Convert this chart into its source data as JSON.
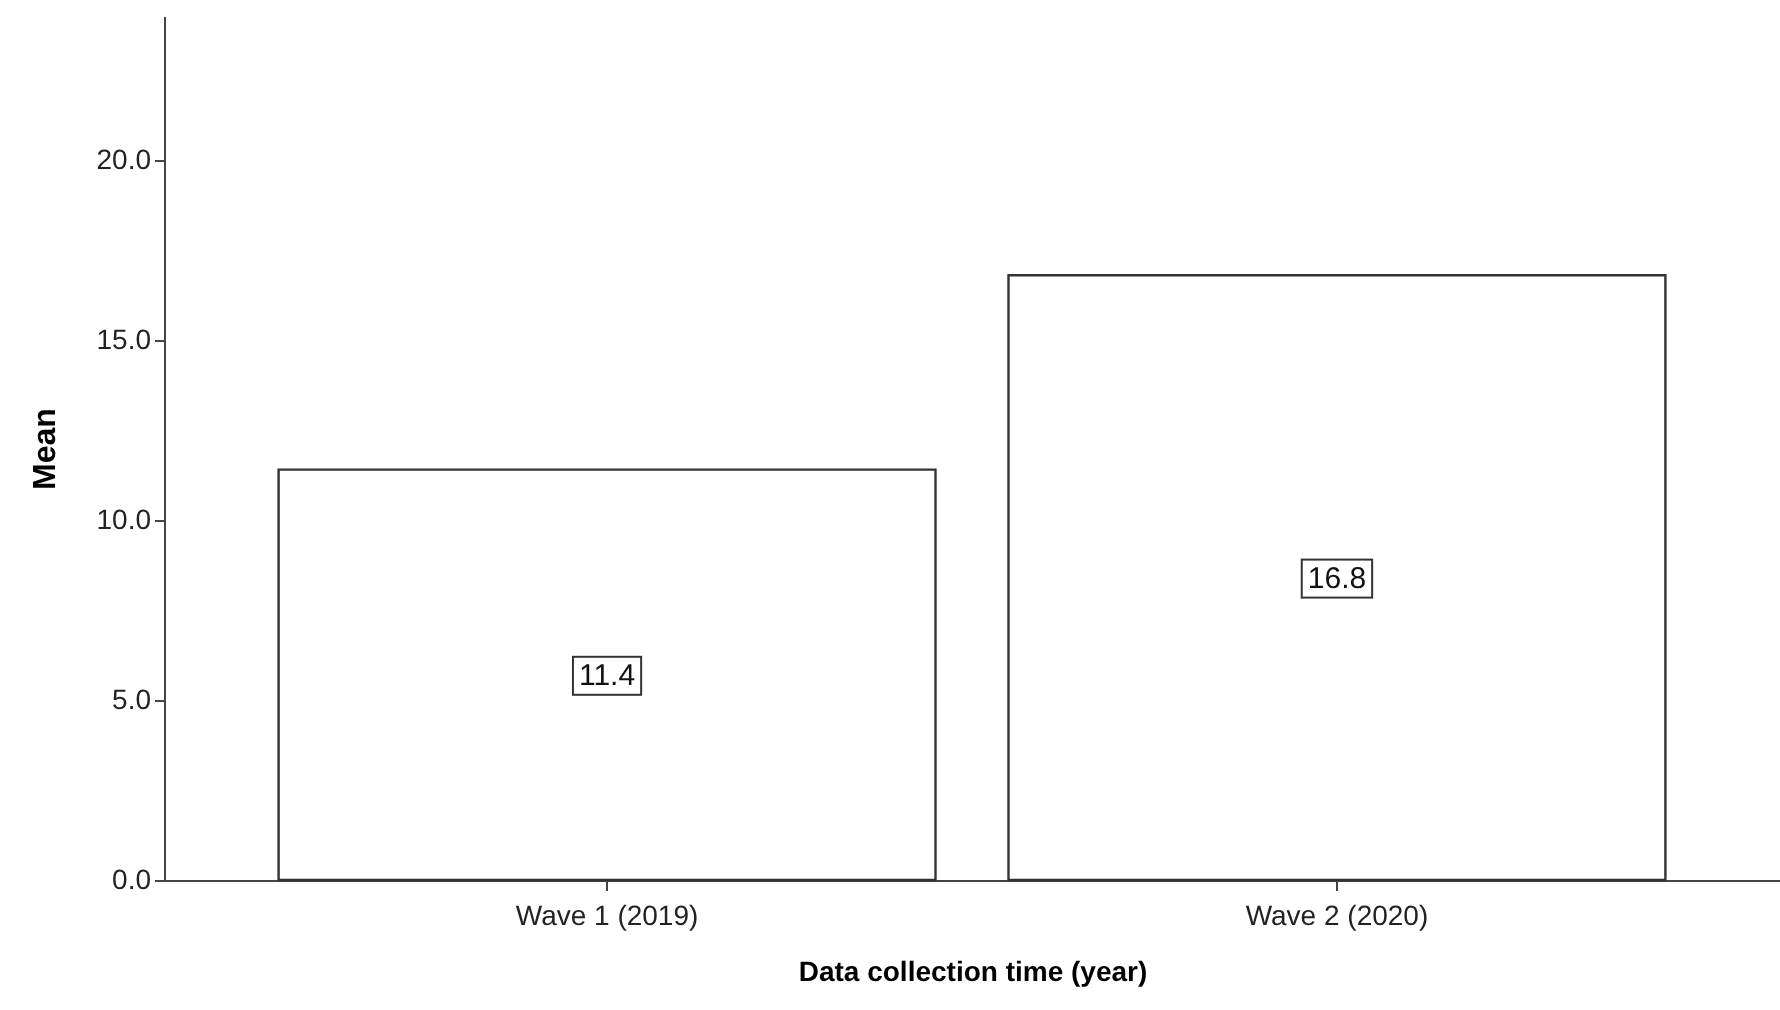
{
  "chart_data": {
    "type": "bar",
    "xlabel": "Data collection time (year)",
    "ylabel": "Mean",
    "categories": [
      "Wave 1 (2019)",
      "Wave 2 (2020)"
    ],
    "values": [
      11.4,
      16.8
    ],
    "color": "#ffffff",
    "data_labels": true,
    "ylim": [
      0,
      24
    ],
    "yticks": [
      {
        "value": 0,
        "label": "0.0"
      },
      {
        "value": 5,
        "label": "5.0"
      },
      {
        "value": 10,
        "label": "10.0"
      },
      {
        "value": 15,
        "label": "15.0"
      },
      {
        "value": 20,
        "label": "20.0"
      }
    ],
    "grid": false
  }
}
